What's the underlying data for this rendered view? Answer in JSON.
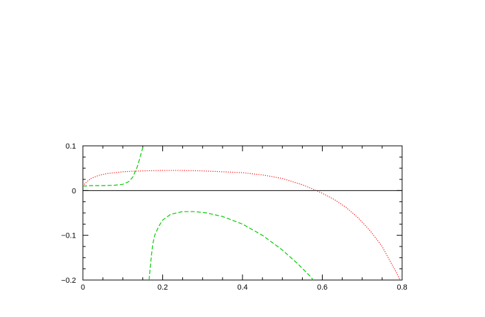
{
  "chart_data": {
    "type": "line",
    "title": "",
    "xlabel": "",
    "ylabel": "",
    "xlim": [
      0,
      0.8
    ],
    "ylim": [
      -0.2,
      0.1
    ],
    "grid": false,
    "legend": "none",
    "x_ticks": [
      {
        "value": 0,
        "label": "0"
      },
      {
        "value": 0.2,
        "label": "0.2"
      },
      {
        "value": 0.4,
        "label": "0.4"
      },
      {
        "value": 0.6,
        "label": "0.6"
      },
      {
        "value": 0.8,
        "label": "0.8"
      }
    ],
    "y_ticks": [
      {
        "value": 0.1,
        "label": "0.1"
      },
      {
        "value": 0,
        "label": "0"
      },
      {
        "value": -0.1,
        "label": "−0.1"
      },
      {
        "value": -0.2,
        "label": "−0.2"
      }
    ],
    "reference_lines": [
      {
        "axis": "y",
        "value": 0,
        "color": "#000000"
      }
    ],
    "series": [
      {
        "color": "#ff0000",
        "style": "dotted",
        "points": [
          [
            0.0,
            0.01
          ],
          [
            0.01,
            0.02
          ],
          [
            0.02,
            0.027
          ],
          [
            0.04,
            0.034
          ],
          [
            0.06,
            0.038
          ],
          [
            0.08,
            0.04
          ],
          [
            0.1,
            0.042
          ],
          [
            0.12,
            0.043
          ],
          [
            0.15,
            0.044
          ],
          [
            0.2,
            0.045
          ],
          [
            0.25,
            0.045
          ],
          [
            0.3,
            0.044
          ],
          [
            0.35,
            0.042
          ],
          [
            0.4,
            0.04
          ],
          [
            0.45,
            0.035
          ],
          [
            0.5,
            0.027
          ],
          [
            0.55,
            0.013
          ],
          [
            0.58,
            0.002
          ],
          [
            0.6,
            -0.006
          ],
          [
            0.63,
            -0.02
          ],
          [
            0.66,
            -0.038
          ],
          [
            0.69,
            -0.061
          ],
          [
            0.72,
            -0.09
          ],
          [
            0.75,
            -0.125
          ],
          [
            0.77,
            -0.158
          ],
          [
            0.785,
            -0.182
          ],
          [
            0.795,
            -0.2
          ]
        ]
      },
      {
        "color": "#00cc00",
        "style": "dashed",
        "points": [
          [
            0.0,
            0.01
          ],
          [
            0.02,
            0.011
          ],
          [
            0.05,
            0.011
          ],
          [
            0.08,
            0.012
          ],
          [
            0.1,
            0.014
          ],
          [
            0.115,
            0.02
          ],
          [
            0.125,
            0.03
          ],
          [
            0.135,
            0.05
          ],
          [
            0.142,
            0.07
          ],
          [
            0.148,
            0.09
          ],
          [
            0.152,
            0.1
          ]
        ]
      },
      {
        "color": "#00cc00",
        "style": "dashed",
        "points": [
          [
            0.166,
            -0.2
          ],
          [
            0.17,
            -0.16
          ],
          [
            0.175,
            -0.12
          ],
          [
            0.18,
            -0.1
          ],
          [
            0.19,
            -0.08
          ],
          [
            0.2,
            -0.066
          ],
          [
            0.22,
            -0.053
          ],
          [
            0.25,
            -0.047
          ],
          [
            0.28,
            -0.047
          ],
          [
            0.31,
            -0.05
          ],
          [
            0.35,
            -0.058
          ],
          [
            0.4,
            -0.075
          ],
          [
            0.45,
            -0.1
          ],
          [
            0.5,
            -0.133
          ],
          [
            0.54,
            -0.165
          ],
          [
            0.57,
            -0.192
          ],
          [
            0.577,
            -0.2
          ]
        ]
      }
    ]
  }
}
